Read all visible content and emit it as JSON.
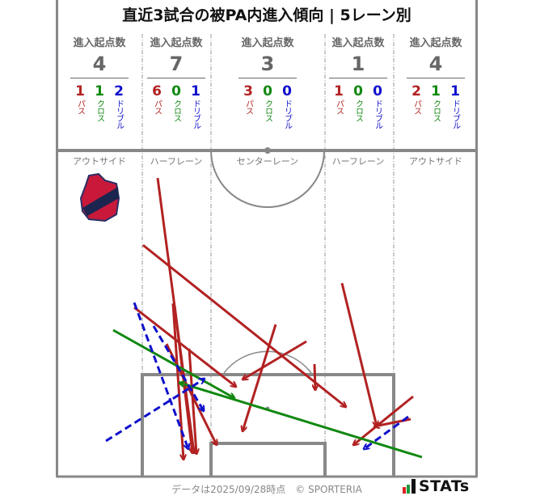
{
  "title": "直近3試合の被PA内進入傾向 | 5レーン別",
  "stat_label": "進入起点数",
  "type_labels": {
    "pass": "パス",
    "cross": "クロス",
    "dribble": "ドリブル"
  },
  "lanes": [
    {
      "name": "アウトサイド",
      "total": "4",
      "pass": "1",
      "cross": "1",
      "dribble": "2"
    },
    {
      "name": "ハーフレーン",
      "total": "7",
      "pass": "6",
      "cross": "0",
      "dribble": "1"
    },
    {
      "name": "センターレーン",
      "total": "3",
      "pass": "3",
      "cross": "0",
      "dribble": "0"
    },
    {
      "name": "ハーフレーン",
      "total": "1",
      "pass": "1",
      "cross": "0",
      "dribble": "0"
    },
    {
      "name": "アウトサイド",
      "total": "4",
      "pass": "2",
      "cross": "1",
      "dribble": "1"
    }
  ],
  "colors": {
    "pass": "#b22222",
    "cross": "#118811",
    "dribble": "#1010cc",
    "pitch_line": "#888888"
  },
  "team_logo": {
    "text": "IWAKI FC",
    "colors": [
      "#c8193a",
      "#1b2550"
    ]
  },
  "footer": "データは2025/09/28時点　© SPORTERIA",
  "brand": "STATs"
}
